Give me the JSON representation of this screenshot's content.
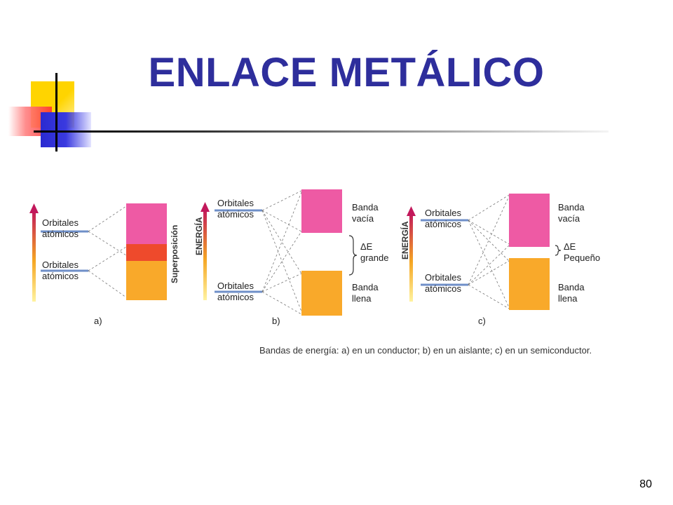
{
  "slide": {
    "title": "ENLACE METÁLICO",
    "page_number": "80"
  },
  "figure": {
    "panels": [
      {
        "tag": "a)",
        "orbitals_upper": [
          "Orbitales",
          "atómicos"
        ],
        "orbitals_lower": [
          "Orbitales",
          "atómicos"
        ],
        "side_label": "Superposición"
      },
      {
        "tag": "b)",
        "axis_label": "ENERGÍA",
        "orbitals_upper": [
          "Orbitales",
          "atómicos"
        ],
        "orbitals_lower": [
          "Orbitales",
          "atómicos"
        ],
        "band_upper": [
          "Banda",
          "vacía"
        ],
        "gap": [
          "ΔE",
          "grande"
        ],
        "band_lower": [
          "Banda",
          "llena"
        ]
      },
      {
        "tag": "c)",
        "axis_label": "ENERGÍA",
        "orbitals_upper": [
          "Orbitales",
          "atómicos"
        ],
        "orbitals_lower": [
          "Orbitales",
          "atómicos"
        ],
        "band_upper": [
          "Banda",
          "vacía"
        ],
        "gap": [
          "ΔE",
          "Pequeño"
        ],
        "band_lower": [
          "Banda",
          "llena"
        ]
      }
    ],
    "caption": "Bandas de energía:  a) en un conductor;  b) en un aislante;  c) en un semiconductor.",
    "colors": {
      "pink": "#ee5aa4",
      "orange": "#f9a92a",
      "overlap": "#ee4a2c",
      "orbital_line": "#6f8fc8",
      "arrow_top": "#c2185b",
      "arrow_bottom": "#ffe066"
    }
  }
}
